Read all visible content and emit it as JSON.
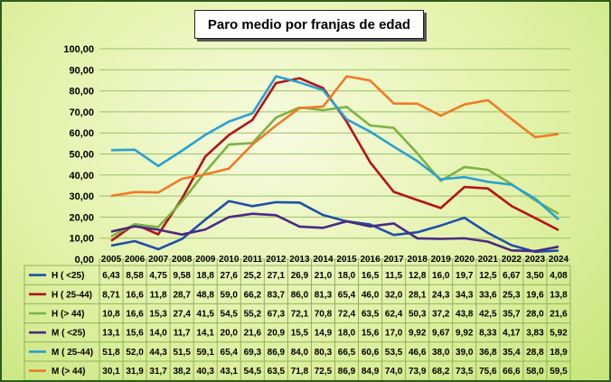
{
  "chart_data": {
    "type": "line",
    "title": "Paro medio por franjas de edad",
    "ylim": [
      0,
      100
    ],
    "y_ticks": [
      "0,00",
      "10,00",
      "20,00",
      "30,00",
      "40,00",
      "50,00",
      "60,00",
      "70,00",
      "80,00",
      "90,00",
      "100,00"
    ],
    "grid": true,
    "legend": "data-table",
    "categories": [
      "2005",
      "2006",
      "2007",
      "2008",
      "2009",
      "2010",
      "2011",
      "2012",
      "2013",
      "2014",
      "2015",
      "2016",
      "2017",
      "2018",
      "2019",
      "2020",
      "2021",
      "2022",
      "2023",
      "2024"
    ],
    "series": [
      {
        "name": "H ( <25)",
        "color": "#1f4fa8",
        "labels": [
          "6,43",
          "8,58",
          "4,75",
          "9,58",
          "18,8",
          "27,6",
          "25,2",
          "27,1",
          "26,9",
          "21,0",
          "18,0",
          "16,5",
          "11,5",
          "12,8",
          "16,0",
          "19,7",
          "12,5",
          "6,67",
          "3,50",
          "4,08"
        ],
        "values": [
          6.43,
          8.58,
          4.75,
          9.58,
          18.8,
          27.6,
          25.2,
          27.1,
          26.9,
          21.0,
          18.0,
          16.5,
          11.5,
          12.8,
          16.0,
          19.7,
          12.5,
          6.67,
          3.5,
          4.08
        ]
      },
      {
        "name": "H ( 25-44)",
        "color": "#b5121b",
        "labels": [
          "8,71",
          "16,6",
          "11,8",
          "28,7",
          "48,8",
          "59,0",
          "66,2",
          "83,7",
          "86,0",
          "81,3",
          "65,4",
          "46,0",
          "32,0",
          "28,1",
          "24,3",
          "34,3",
          "33,6",
          "25,3",
          "19,6",
          "13,8"
        ],
        "values": [
          8.71,
          16.6,
          11.8,
          28.7,
          48.8,
          59.0,
          66.2,
          83.7,
          86.0,
          81.3,
          65.4,
          46.0,
          32.0,
          28.1,
          24.3,
          34.3,
          33.6,
          25.3,
          19.6,
          13.8
        ]
      },
      {
        "name": "H (> 44)",
        "color": "#7cb342",
        "labels": [
          "10,8",
          "16,6",
          "15,3",
          "27,4",
          "41,5",
          "54,5",
          "55,2",
          "67,3",
          "72,1",
          "70,8",
          "72,4",
          "63,5",
          "62,4",
          "50,3",
          "37,2",
          "43,8",
          "42,5",
          "35,7",
          "28,0",
          "21,6"
        ],
        "values": [
          10.8,
          16.6,
          15.3,
          27.4,
          41.5,
          54.5,
          55.2,
          67.3,
          72.1,
          70.8,
          72.4,
          63.5,
          62.4,
          50.3,
          37.2,
          43.8,
          42.5,
          35.7,
          28.0,
          21.6
        ]
      },
      {
        "name": "M ( <25)",
        "color": "#4b2a82",
        "labels": [
          "13,1",
          "15,6",
          "14,0",
          "11,7",
          "14,1",
          "20,0",
          "21,6",
          "20,9",
          "15,5",
          "14,9",
          "18,0",
          "15,6",
          "17,0",
          "9,92",
          "9,67",
          "9,92",
          "8,33",
          "4,17",
          "3,83",
          "5,92"
        ],
        "values": [
          13.1,
          15.6,
          14.0,
          11.7,
          14.1,
          20.0,
          21.6,
          20.9,
          15.5,
          14.9,
          18.0,
          15.6,
          17.0,
          9.92,
          9.67,
          9.92,
          8.33,
          4.17,
          3.83,
          5.92
        ]
      },
      {
        "name": "M ( 25-44)",
        "color": "#2aa0d2",
        "labels": [
          "51,8",
          "52,0",
          "44,3",
          "51,5",
          "59,1",
          "65,4",
          "69,3",
          "86,9",
          "84,0",
          "80,3",
          "66,5",
          "60,6",
          "53,5",
          "46,6",
          "38,0",
          "39,0",
          "36,8",
          "35,4",
          "28,8",
          "18,9"
        ],
        "values": [
          51.8,
          52.0,
          44.3,
          51.5,
          59.1,
          65.4,
          69.3,
          86.9,
          84.0,
          80.3,
          66.5,
          60.6,
          53.5,
          46.6,
          38.0,
          39.0,
          36.8,
          35.4,
          28.8,
          18.9
        ]
      },
      {
        "name": "M (> 44)",
        "color": "#f07a26",
        "labels": [
          "30,1",
          "31,9",
          "31,7",
          "38,2",
          "40,3",
          "43,1",
          "54,5",
          "63,5",
          "71,8",
          "72,5",
          "86,9",
          "84,9",
          "74,0",
          "73,9",
          "68,2",
          "73,5",
          "75,6",
          "66,6",
          "58,0",
          "59,5"
        ],
        "values": [
          30.1,
          31.9,
          31.7,
          38.2,
          40.3,
          43.1,
          54.5,
          63.5,
          71.8,
          72.5,
          86.9,
          84.9,
          74.0,
          73.9,
          68.2,
          73.5,
          75.6,
          66.6,
          58.0,
          59.5
        ]
      }
    ]
  }
}
